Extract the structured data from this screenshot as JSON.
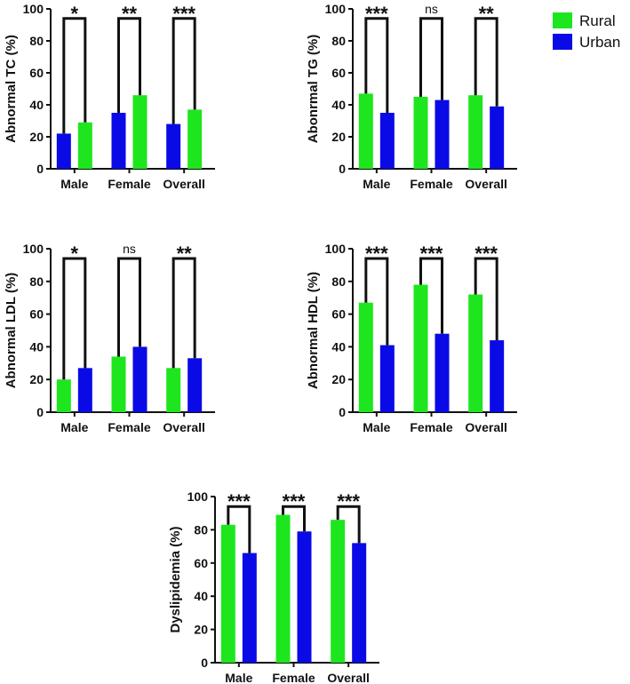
{
  "legend": {
    "position": "top-right",
    "items": [
      {
        "label": "Rural",
        "color": "#1ee61e"
      },
      {
        "label": "Urban",
        "color": "#0a0ae6"
      }
    ]
  },
  "chart_data": [
    {
      "type": "bar",
      "ylabel": "Abnormal TC (%)",
      "categories": [
        "Male",
        "Female",
        "Overall"
      ],
      "ylim": [
        0,
        100
      ],
      "yticks": [
        "0",
        "20",
        "40",
        "60",
        "80",
        "100"
      ],
      "series": [
        {
          "name": "Urban",
          "values": [
            22,
            35,
            28
          ]
        },
        {
          "name": "Rural",
          "values": [
            29,
            46,
            37
          ]
        }
      ],
      "significance": [
        "*",
        "**",
        "***"
      ]
    },
    {
      "type": "bar",
      "ylabel": "Abonrmal TG (%)",
      "categories": [
        "Male",
        "Female",
        "Overall"
      ],
      "ylim": [
        0,
        100
      ],
      "yticks": [
        "0",
        "20",
        "40",
        "60",
        "80",
        "100"
      ],
      "series": [
        {
          "name": "Rural",
          "values": [
            47,
            45,
            46
          ]
        },
        {
          "name": "Urban",
          "values": [
            35,
            43,
            39
          ]
        }
      ],
      "significance": [
        "***",
        "ns",
        "**"
      ]
    },
    {
      "type": "bar",
      "ylabel": "Abnormal LDL (%)",
      "categories": [
        "Male",
        "Female",
        "Overall"
      ],
      "ylim": [
        0,
        100
      ],
      "yticks": [
        "0",
        "20",
        "40",
        "60",
        "80",
        "100"
      ],
      "series": [
        {
          "name": "Rural",
          "values": [
            20,
            34,
            27
          ]
        },
        {
          "name": "Urban",
          "values": [
            27,
            40,
            33
          ]
        }
      ],
      "significance": [
        "*",
        "ns",
        "**"
      ]
    },
    {
      "type": "bar",
      "ylabel": "Abnormal HDL (%)",
      "categories": [
        "Male",
        "Female",
        "Overall"
      ],
      "ylim": [
        0,
        100
      ],
      "yticks": [
        "0",
        "20",
        "40",
        "60",
        "80",
        "100"
      ],
      "series": [
        {
          "name": "Rural",
          "values": [
            67,
            78,
            72
          ]
        },
        {
          "name": "Urban",
          "values": [
            41,
            48,
            44
          ]
        }
      ],
      "significance": [
        "***",
        "***",
        "***"
      ]
    },
    {
      "type": "bar",
      "ylabel": "Dyslipidemia (%)",
      "categories": [
        "Male",
        "Female",
        "Overall"
      ],
      "ylim": [
        0,
        100
      ],
      "yticks": [
        "0",
        "20",
        "40",
        "60",
        "80",
        "100"
      ],
      "series": [
        {
          "name": "Rural",
          "values": [
            83,
            89,
            86
          ]
        },
        {
          "name": "Urban",
          "values": [
            66,
            79,
            72
          ]
        }
      ],
      "significance": [
        "***",
        "***",
        "***"
      ]
    }
  ]
}
